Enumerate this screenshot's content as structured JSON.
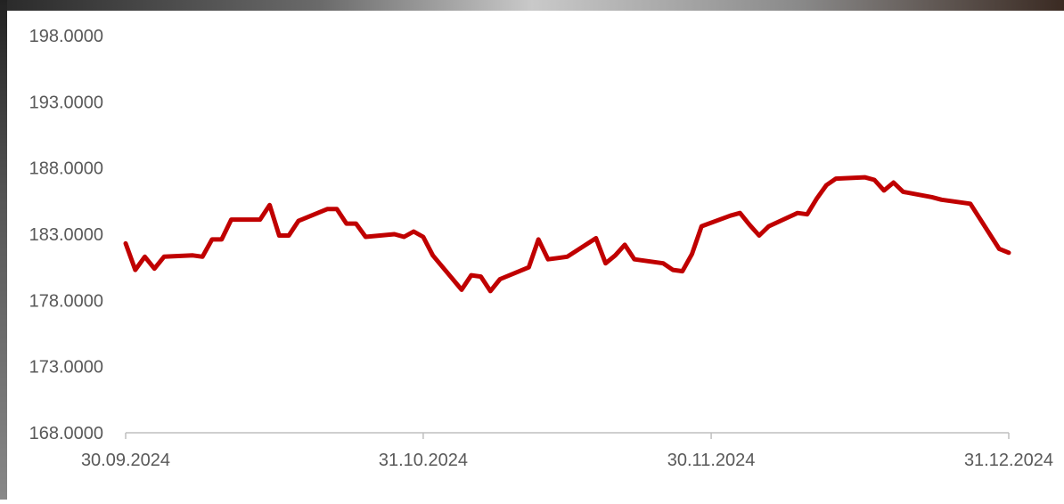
{
  "chart_data": {
    "type": "line",
    "title": "",
    "xlabel": "",
    "ylabel": "",
    "ylim": [
      168,
      198
    ],
    "y_ticks": [
      168,
      173,
      178,
      183,
      188,
      193,
      198
    ],
    "y_tick_labels": [
      "168.0000",
      "173.0000",
      "178.0000",
      "183.0000",
      "188.0000",
      "193.0000",
      "198.0000"
    ],
    "x_range": [
      "2024-09-30",
      "2024-12-31"
    ],
    "x_ticks": [
      "2024-09-30",
      "2024-10-31",
      "2024-11-30",
      "2024-12-31"
    ],
    "x_tick_labels": [
      "30.09.2024",
      "31.10.2024",
      "30.11.2024",
      "31.12.2024"
    ],
    "grid": false,
    "legend": "none",
    "color": "#C00000",
    "series": [
      {
        "x": [
          "2024-09-30",
          "2024-10-01",
          "2024-10-02",
          "2024-10-03",
          "2024-10-04",
          "2024-10-07",
          "2024-10-08",
          "2024-10-09",
          "2024-10-10",
          "2024-10-11",
          "2024-10-14",
          "2024-10-15",
          "2024-10-16",
          "2024-10-17",
          "2024-10-18",
          "2024-10-21",
          "2024-10-22",
          "2024-10-23",
          "2024-10-24",
          "2024-10-25",
          "2024-10-28",
          "2024-10-29",
          "2024-10-30",
          "2024-10-31",
          "2024-11-01",
          "2024-11-04",
          "2024-11-05",
          "2024-11-06",
          "2024-11-07",
          "2024-11-08",
          "2024-11-11",
          "2024-11-12",
          "2024-11-13",
          "2024-11-14",
          "2024-11-15",
          "2024-11-18",
          "2024-11-19",
          "2024-11-20",
          "2024-11-21",
          "2024-11-22",
          "2024-11-25",
          "2024-11-26",
          "2024-11-27",
          "2024-11-28",
          "2024-11-29",
          "2024-12-02",
          "2024-12-03",
          "2024-12-04",
          "2024-12-05",
          "2024-12-06",
          "2024-12-09",
          "2024-12-10",
          "2024-12-11",
          "2024-12-12",
          "2024-12-13",
          "2024-12-16",
          "2024-12-17",
          "2024-12-18",
          "2024-12-19",
          "2024-12-20",
          "2024-12-23",
          "2024-12-24",
          "2024-12-27",
          "2024-12-30",
          "2024-12-31"
        ],
        "y": [
          182.3,
          180.3,
          181.3,
          180.4,
          181.3,
          181.4,
          181.3,
          182.6,
          182.6,
          184.1,
          184.1,
          185.2,
          182.9,
          182.9,
          184.0,
          184.9,
          184.9,
          183.8,
          183.8,
          182.8,
          183.0,
          182.8,
          183.2,
          182.8,
          181.4,
          178.8,
          179.9,
          179.8,
          178.7,
          179.6,
          180.5,
          182.6,
          181.1,
          181.2,
          181.3,
          182.7,
          180.8,
          181.4,
          182.2,
          181.1,
          180.8,
          180.3,
          180.2,
          181.5,
          183.6,
          184.4,
          184.6,
          183.7,
          182.9,
          183.6,
          184.6,
          184.5,
          185.7,
          186.7,
          187.2,
          187.3,
          187.1,
          186.3,
          186.9,
          186.2,
          185.8,
          185.6,
          185.3,
          181.9,
          181.6
        ]
      }
    ]
  }
}
